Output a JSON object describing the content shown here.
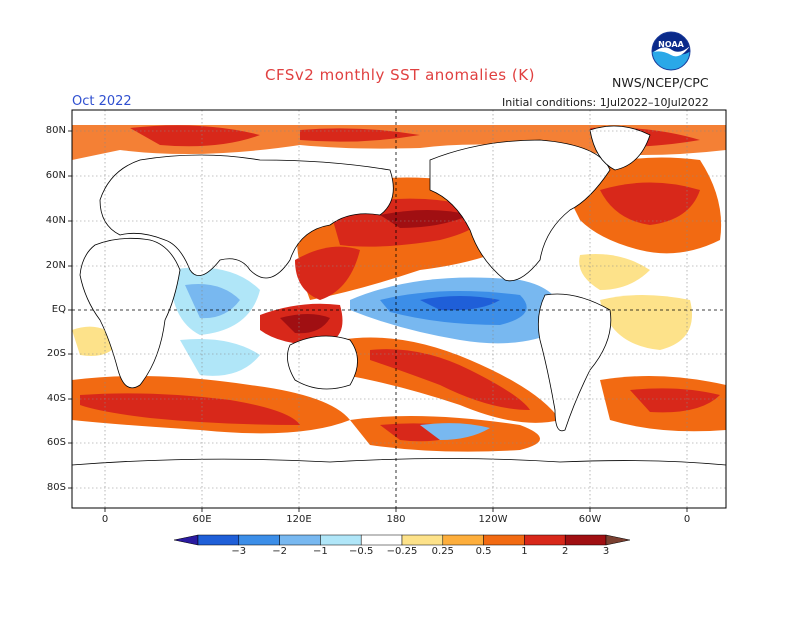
{
  "title": "CFSv2 monthly SST anomalies (K)",
  "month": "Oct 2022",
  "agency": "NWS/NCEP/CPC",
  "initial_conditions": "Initial conditions: 1Jul2022–10Jul2022",
  "logo": {
    "text": "NOAA",
    "colors": {
      "top": "#0a2a8a",
      "bottom": "#2aa8e8",
      "bird": "#ffffff"
    }
  },
  "map": {
    "lat_labels": [
      "80N",
      "60N",
      "40N",
      "20N",
      "EQ",
      "20S",
      "40S",
      "60S",
      "80S"
    ],
    "lon_labels": [
      "0",
      "60E",
      "120E",
      "180",
      "120W",
      "60W",
      "0"
    ]
  },
  "colorbar": {
    "labels": [
      "−3",
      "−2",
      "−1",
      "−0.5",
      "−0.25",
      "0.25",
      "0.5",
      "1",
      "2",
      "3"
    ],
    "colors": [
      "#2a1aa0",
      "#1f5fd8",
      "#3c8ee8",
      "#78b8f0",
      "#b0e6f8",
      "#ffffff",
      "#fde28a",
      "#fdae3c",
      "#f26a12",
      "#d8281a",
      "#a00f12",
      "#7a4030"
    ]
  }
}
